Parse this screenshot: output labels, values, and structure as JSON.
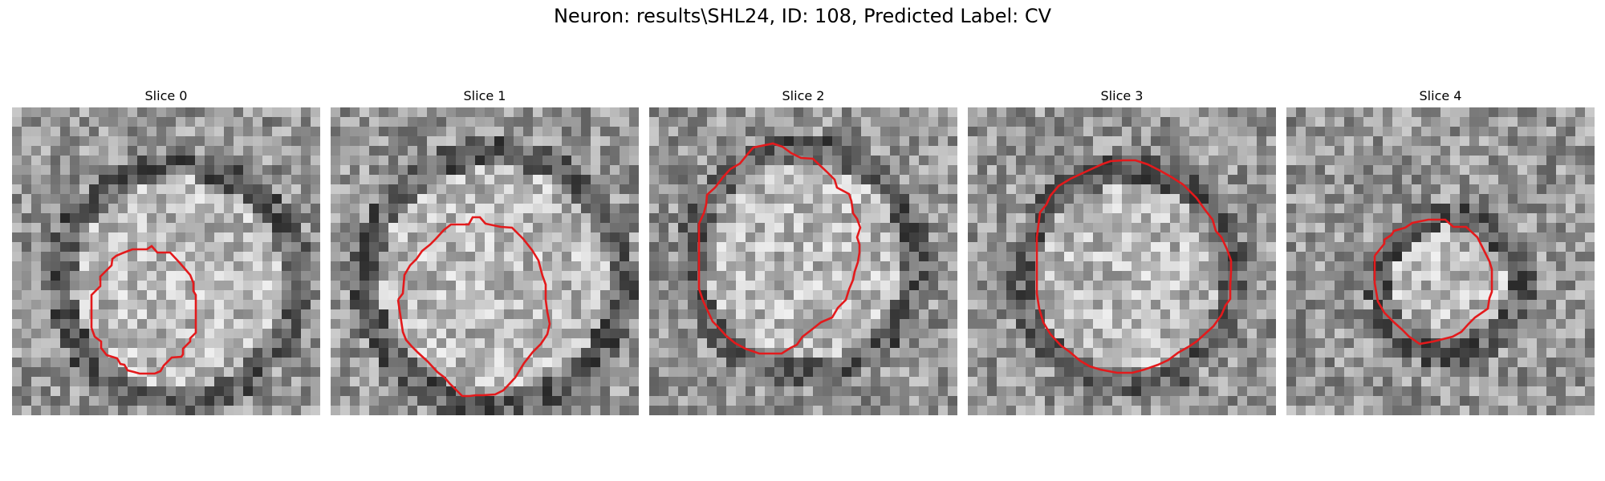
{
  "figure": {
    "title": "Neuron: results\\SHL24, ID: 108, Predicted Label: CV"
  },
  "panels": [
    {
      "title": "Slice 0"
    },
    {
      "title": "Slice 1"
    },
    {
      "title": "Slice 2"
    },
    {
      "title": "Slice 3"
    },
    {
      "title": "Slice 4"
    }
  ],
  "colors": {
    "contour": "#e31a1c",
    "background": "#ffffff"
  }
}
